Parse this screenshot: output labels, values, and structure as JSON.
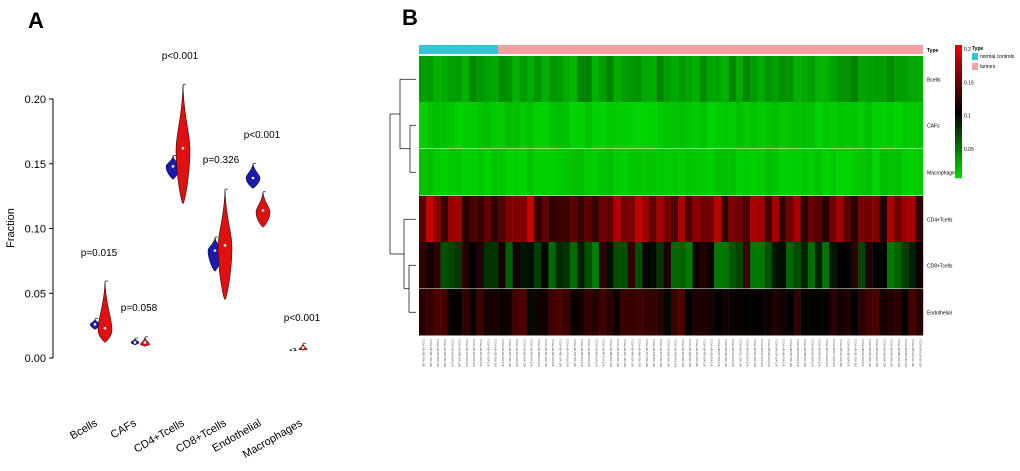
{
  "panels": {
    "a": "A",
    "b": "B"
  },
  "chart_data": [
    {
      "type": "violin",
      "panel": "A",
      "ylabel": "Fraction",
      "ylim": [
        -0.005,
        0.235
      ],
      "yticks": [
        "0.00",
        "0.05",
        "0.10",
        "0.15",
        "0.20"
      ],
      "categories": [
        "Bcells",
        "CAFs",
        "CD4+Tcells",
        "CD8+Tcells",
        "Endothelial",
        "Macrophages"
      ],
      "pvalues": [
        "p=0.015",
        "p=0.058",
        "p<0.001",
        "p=0.326",
        "p<0.001",
        "p<0.001"
      ],
      "series": [
        {
          "name": "normal controls",
          "color": "#1a1ab3",
          "medians": [
            0.026,
            0.012,
            0.148,
            0.083,
            0.139,
            0.006
          ],
          "ranges": [
            [
              0.022,
              0.03
            ],
            [
              0.01,
              0.015
            ],
            [
              0.138,
              0.156
            ],
            [
              0.067,
              0.093
            ],
            [
              0.131,
              0.15
            ],
            [
              0.005,
              0.007
            ]
          ]
        },
        {
          "name": "tumors",
          "color": "#e01010",
          "medians": [
            0.023,
            0.012,
            0.162,
            0.087,
            0.114,
            0.008
          ],
          "ranges": [
            [
              0.012,
              0.059
            ],
            [
              0.009,
              0.016
            ],
            [
              0.119,
              0.211
            ],
            [
              0.045,
              0.13
            ],
            [
              0.101,
              0.128
            ],
            [
              0.006,
              0.011
            ]
          ]
        }
      ]
    },
    {
      "type": "heatmap",
      "panel": "B",
      "rows": [
        "Bcells",
        "CAFs",
        "Macrophages",
        "CD4+Tcells",
        "CD8+Tcells",
        "Endothelial"
      ],
      "annotation_label": "Type",
      "legend_title": "Type",
      "groups": [
        {
          "name": "normal controls",
          "color": "#33c6d6",
          "count": 11
        },
        {
          "name": "tumors",
          "color": "#f3a0a0",
          "count": 59
        }
      ],
      "color_scale": {
        "ticks": [
          "0.2",
          "0.15",
          "0.1",
          "0.05"
        ],
        "low": "#00e000",
        "mid": "#000000",
        "high": "#e00000"
      },
      "column_label_prefix": "TCGA-AB-"
    }
  ]
}
